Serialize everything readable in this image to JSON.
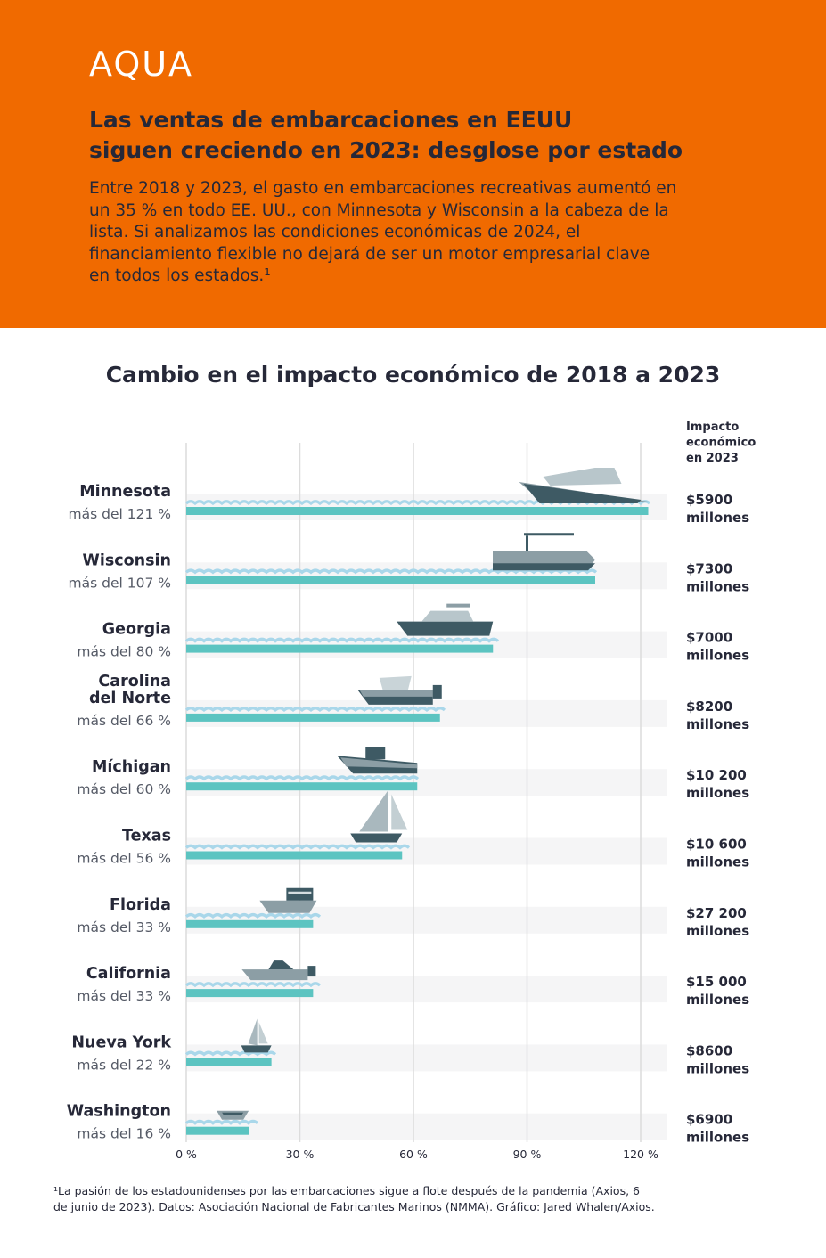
{
  "header": {
    "logo": "AQUA",
    "title_lines": [
      "Las ventas de embarcaciones en EEUU",
      "siguen creciendo en 2023: desglose por estado"
    ],
    "description_lines": [
      "Entre 2018 y 2023, el gasto en embarcaciones recreativas aumentó en",
      "un 35 % en todo EE. UU., con Minnesota y Wisconsin a la cabeza de la",
      "lista. Si analizamos las condiciones económicas de 2024, el",
      "financiamiento flexible no dejará de ser un motor empresarial clave",
      "en todos los estados.¹"
    ]
  },
  "colors": {
    "header_bg": "#f06a00",
    "bar": "#5cc4c1",
    "wave": "#a9d7ea",
    "row_bg": "#f5f5f6",
    "gridline": "#dcdcdc",
    "boat": "#8c9ea5",
    "boat_dark": "#3e5a64",
    "text": "#262838"
  },
  "chart_data": {
    "type": "bar",
    "orientation": "horizontal",
    "title": "Cambio en el impacto económico de 2018 a 2023",
    "value_column_header": [
      "Impacto",
      "económico",
      "en 2023"
    ],
    "xlim": [
      0,
      130
    ],
    "xticks": [
      0,
      30,
      60,
      90,
      120
    ],
    "xtick_labels": [
      "0 %",
      "30 %",
      "60 %",
      "90 %",
      "120 %"
    ],
    "grid": true,
    "rows": [
      {
        "state": [
          "Minnesota"
        ],
        "label": "más del 121 %",
        "value": 122,
        "impact": [
          "$5900",
          "millones"
        ],
        "boat": "yacht"
      },
      {
        "state": [
          "Wisconsin"
        ],
        "label": "más del 107 %",
        "value": 108,
        "impact": [
          "$7300",
          "millones"
        ],
        "boat": "pontoon"
      },
      {
        "state": [
          "Georgia"
        ],
        "label": "más del 80 %",
        "value": 81,
        "impact": [
          "$7000",
          "millones"
        ],
        "boat": "cruiser"
      },
      {
        "state": [
          "Carolina",
          "del Norte"
        ],
        "label": "más del 66 %",
        "value": 67,
        "impact": [
          "$8200",
          "millones"
        ],
        "boat": "bimini"
      },
      {
        "state": [
          "Míchigan"
        ],
        "label": "más del 60 %",
        "value": 61,
        "impact": [
          "$10 200",
          "millones"
        ],
        "boat": "tug"
      },
      {
        "state": [
          "Texas"
        ],
        "label": "más del 56 %",
        "value": 57,
        "impact": [
          "$10 600",
          "millones"
        ],
        "boat": "sailboat"
      },
      {
        "state": [
          "Florida"
        ],
        "label": "más del 33 %",
        "value": 33.5,
        "impact": [
          "$27 200",
          "millones"
        ],
        "boat": "houseboat"
      },
      {
        "state": [
          "California"
        ],
        "label": "más del 33 %",
        "value": 33.5,
        "impact": [
          "$15 000",
          "millones"
        ],
        "boat": "speedboat"
      },
      {
        "state": [
          "Nueva York"
        ],
        "label": "más del 22 %",
        "value": 22.5,
        "impact": [
          "$8600",
          "millones"
        ],
        "boat": "small-sailboat"
      },
      {
        "state": [
          "Washington"
        ],
        "label": "más del 16 %",
        "value": 16.5,
        "impact": [
          "$6900",
          "millones"
        ],
        "boat": "dinghy"
      }
    ]
  },
  "footnote_lines": [
    "¹La pasión de los estadounidenses por las embarcaciones sigue a flote después de la pandemia (Axios, 6",
    "de junio de 2023). Datos: Asociación Nacional de Fabricantes Marinos (NMMA). Gráfico: Jared Whalen/Axios."
  ]
}
